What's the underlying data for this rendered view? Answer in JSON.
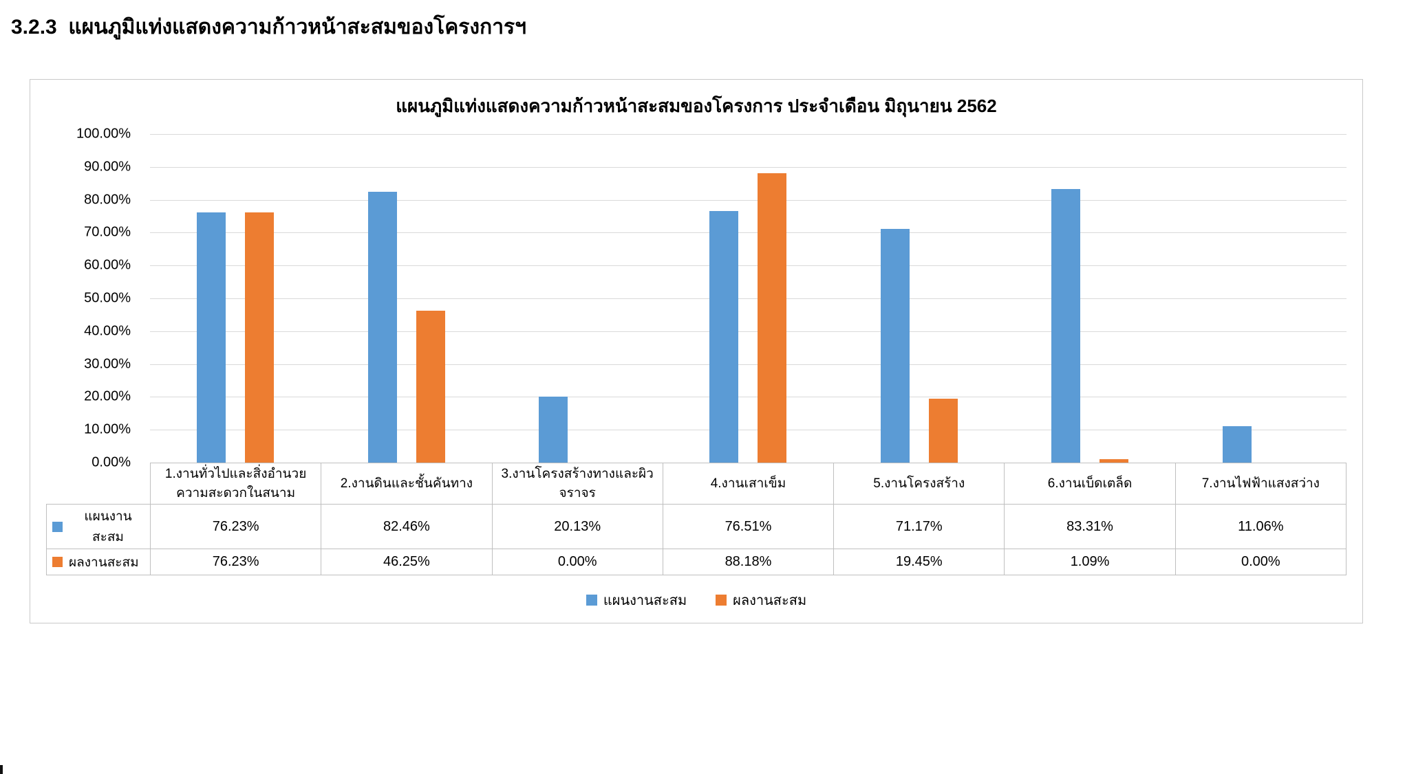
{
  "page": {
    "heading": "3.2.3  แผนภูมิแท่งแสดงความก้าวหน้าสะสมของโครงการฯ"
  },
  "chart_data": {
    "type": "bar",
    "title": "แผนภูมิแท่งแสดงความก้าวหน้าสะสมของโครงการ ประจำเดือน มิถุนายน 2562",
    "categories": [
      "1.งานทั่วไปและสิ่งอำนวยความสะดวกในสนาม",
      "2.งานดินและชั้นคันทาง",
      "3.งานโครงสร้างทางและผิวจราจร",
      "4.งานเสาเข็ม",
      "5.งานโครงสร้าง",
      "6.งานเบ็ดเตล็ด",
      "7.งานไฟฟ้าแสงสว่าง"
    ],
    "categories_display": [
      [
        "1.งานทั่วไปและสิ่งอำนวย",
        "ความสะดวกในสนาม"
      ],
      [
        "2.งานดินและชั้นคันทาง"
      ],
      [
        "3.งานโครงสร้างทางและผิว",
        "จราจร"
      ],
      [
        "4.งานเสาเข็ม"
      ],
      [
        "5.งานโครงสร้าง"
      ],
      [
        "6.งานเบ็ดเตล็ด"
      ],
      [
        "7.งานไฟฟ้าแสงสว่าง"
      ]
    ],
    "series": [
      {
        "name": "แผนงานสะสม",
        "color": "#5B9BD5",
        "values": [
          76.23,
          82.46,
          20.13,
          76.51,
          71.17,
          83.31,
          11.06
        ]
      },
      {
        "name": "ผลงานสะสม",
        "color": "#ED7D31",
        "values": [
          76.23,
          46.25,
          0,
          88.18,
          19.45,
          1.09,
          0
        ]
      }
    ],
    "y_ticks": [
      "100.00%",
      "90.00%",
      "80.00%",
      "70.00%",
      "60.00%",
      "50.00%",
      "40.00%",
      "30.00%",
      "20.00%",
      "10.00%",
      "0.00%"
    ],
    "ylim": [
      0,
      100
    ],
    "grid": true,
    "value_format": "percent_2dp",
    "legend_position": "bottom",
    "legend": [
      "แผนงานสะสม",
      "ผลงานสะสม"
    ]
  }
}
